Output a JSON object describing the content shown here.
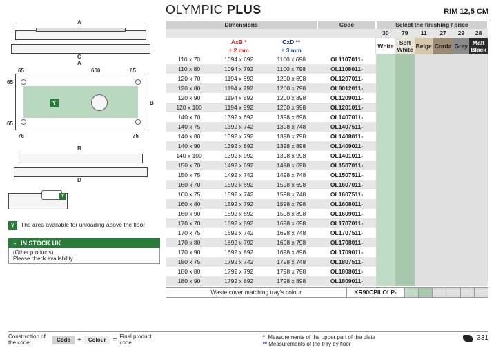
{
  "title_main": "OLYMPIC ",
  "title_bold": "PLUS",
  "rim": "RIM 12,5 CM",
  "headers": {
    "dimensions": "Dimensions",
    "code": "Code",
    "finishing": "Select the finishing / price"
  },
  "tolerances": {
    "axb_label": "AxB *",
    "axb_tol": "± 2 mm",
    "cxd_label": "CxD **",
    "cxd_tol": "± 3 mm"
  },
  "finish_codes": [
    "30",
    "79",
    "11",
    "27",
    "29",
    "28"
  ],
  "finish_names": [
    "White",
    "Soft White",
    "Beige",
    "Corda",
    "Grey",
    "Matt Black"
  ],
  "rows": [
    {
      "size": "110 x 70",
      "axb": "1094 x 692",
      "cxd": "1100 x 698",
      "code": "OL1107011-",
      "f": [
        1,
        1,
        0,
        0,
        0,
        0
      ],
      "alt": 0
    },
    {
      "size": "110 x 80",
      "axb": "1094 x 792",
      "cxd": "1100 x 798",
      "code": "OL1108011-",
      "f": [
        1,
        1,
        0,
        0,
        0,
        0
      ],
      "alt": 1
    },
    {
      "size": "120 x 70",
      "axb": "1194 x 692",
      "cxd": "1200 x 698",
      "code": "OL1207011-",
      "f": [
        1,
        1,
        0,
        0,
        0,
        0
      ],
      "alt": 0
    },
    {
      "size": "120 x 80",
      "axb": "1194 x 792",
      "cxd": "1200 x 798",
      "code": "OL8012011-",
      "f": [
        1,
        1,
        0,
        0,
        0,
        0
      ],
      "alt": 1
    },
    {
      "size": "120 x 90",
      "axb": "1194 x 892",
      "cxd": "1200 x 898",
      "code": "OL1209011-",
      "f": [
        1,
        1,
        0,
        0,
        0,
        0
      ],
      "alt": 0
    },
    {
      "size": "120 x 100",
      "axb": "1194 x 992",
      "cxd": "1200 x 998",
      "code": "OL1201011-",
      "f": [
        1,
        1,
        0,
        0,
        0,
        0
      ],
      "alt": 1
    },
    {
      "size": "140 x 70",
      "axb": "1392 x 692",
      "cxd": "1398 x 698",
      "code": "OL1407011-",
      "f": [
        1,
        1,
        0,
        0,
        0,
        0
      ],
      "alt": 0
    },
    {
      "size": "140 x 75",
      "axb": "1392 x 742",
      "cxd": "1398 x 748",
      "code": "OL1407511-",
      "f": [
        1,
        1,
        0,
        0,
        0,
        0
      ],
      "alt": 1
    },
    {
      "size": "140 x 80",
      "axb": "1392 x 792",
      "cxd": "1398 x 798",
      "code": "OL1408011-",
      "f": [
        1,
        1,
        0,
        0,
        0,
        0
      ],
      "alt": 0
    },
    {
      "size": "140 x 90",
      "axb": "1392 x 892",
      "cxd": "1398 x 898",
      "code": "OL1409011-",
      "f": [
        1,
        1,
        0,
        0,
        0,
        0
      ],
      "alt": 1
    },
    {
      "size": "140 x 100",
      "axb": "1392 x 992",
      "cxd": "1398 x 998",
      "code": "OL1401011-",
      "f": [
        1,
        1,
        0,
        0,
        0,
        0
      ],
      "alt": 0
    },
    {
      "size": "150 x 70",
      "axb": "1492 x 692",
      "cxd": "1498 x 698",
      "code": "OL1507011-",
      "f": [
        1,
        1,
        0,
        0,
        0,
        0
      ],
      "alt": 1
    },
    {
      "size": "150 x 75",
      "axb": "1492 x 742",
      "cxd": "1498 x 748",
      "code": "OL1507511-",
      "f": [
        1,
        1,
        0,
        0,
        0,
        0
      ],
      "alt": 0
    },
    {
      "size": "160 x 70",
      "axb": "1592 x 692",
      "cxd": "1598 x 698",
      "code": "OL1607011-",
      "f": [
        1,
        1,
        0,
        0,
        0,
        0
      ],
      "alt": 1
    },
    {
      "size": "160 x 75",
      "axb": "1592 x 742",
      "cxd": "1598 x 748",
      "code": "OL1607511-",
      "f": [
        1,
        1,
        0,
        0,
        0,
        0
      ],
      "alt": 0
    },
    {
      "size": "160 x 80",
      "axb": "1592 x 792",
      "cxd": "1598 x 798",
      "code": "OL1608011-",
      "f": [
        1,
        1,
        0,
        0,
        0,
        0
      ],
      "alt": 1
    },
    {
      "size": "160 x 90",
      "axb": "1592 x 892",
      "cxd": "1598 x 898",
      "code": "OL1609011-",
      "f": [
        1,
        1,
        0,
        0,
        0,
        0
      ],
      "alt": 0
    },
    {
      "size": "170 x 70",
      "axb": "1692 x 692",
      "cxd": "1698 x 698",
      "code": "OL1707011-",
      "f": [
        1,
        1,
        0,
        0,
        0,
        0
      ],
      "alt": 1
    },
    {
      "size": "170 x 75",
      "axb": "1692 x 742",
      "cxd": "1698 x 748",
      "code": "OL1707511-",
      "f": [
        1,
        1,
        0,
        0,
        0,
        0
      ],
      "alt": 0
    },
    {
      "size": "170 x 80",
      "axb": "1692 x 792",
      "cxd": "1698 x 798",
      "code": "OL1708011-",
      "f": [
        1,
        1,
        0,
        0,
        0,
        0
      ],
      "alt": 1
    },
    {
      "size": "170 x 90",
      "axb": "1692 x 892",
      "cxd": "1698 x 898",
      "code": "OL1709011-",
      "f": [
        1,
        1,
        0,
        0,
        0,
        0
      ],
      "alt": 0
    },
    {
      "size": "180 x 75",
      "axb": "1792 x 742",
      "cxd": "1798 x 748",
      "code": "OL1807511-",
      "f": [
        1,
        1,
        0,
        0,
        0,
        0
      ],
      "alt": 1
    },
    {
      "size": "180 x 80",
      "axb": "1792 x 792",
      "cxd": "1798 x 798",
      "code": "OL1808011-",
      "f": [
        1,
        1,
        0,
        0,
        0,
        0
      ],
      "alt": 0
    },
    {
      "size": "180 x 90",
      "axb": "1792 x 892",
      "cxd": "1798 x 898",
      "code": "OL1809011-",
      "f": [
        1,
        1,
        0,
        0,
        0,
        0
      ],
      "alt": 1
    }
  ],
  "waste": {
    "label": "Waste cover matching tray's colour",
    "code": "KR90CPILOLP-"
  },
  "legend": {
    "y_badge": "Y",
    "y_text": "The area available for unloading above the floor",
    "stock_title": "IN STOCK UK",
    "stock_sub1": "(Other products)",
    "stock_sub2": "Please check availability"
  },
  "footer": {
    "construction": "Construction of the code:",
    "code": "Code",
    "colour": "Colour",
    "equals": "=",
    "finalprod": "Final product code",
    "star1": "Measurements of the upper part of the plate",
    "star2": "Measurements of the tray by floor",
    "page": "331"
  },
  "diagram_labels": {
    "A": "A",
    "B": "B",
    "C": "C",
    "D": "D",
    "d65": "65",
    "d76": "76",
    "d600": "600"
  }
}
